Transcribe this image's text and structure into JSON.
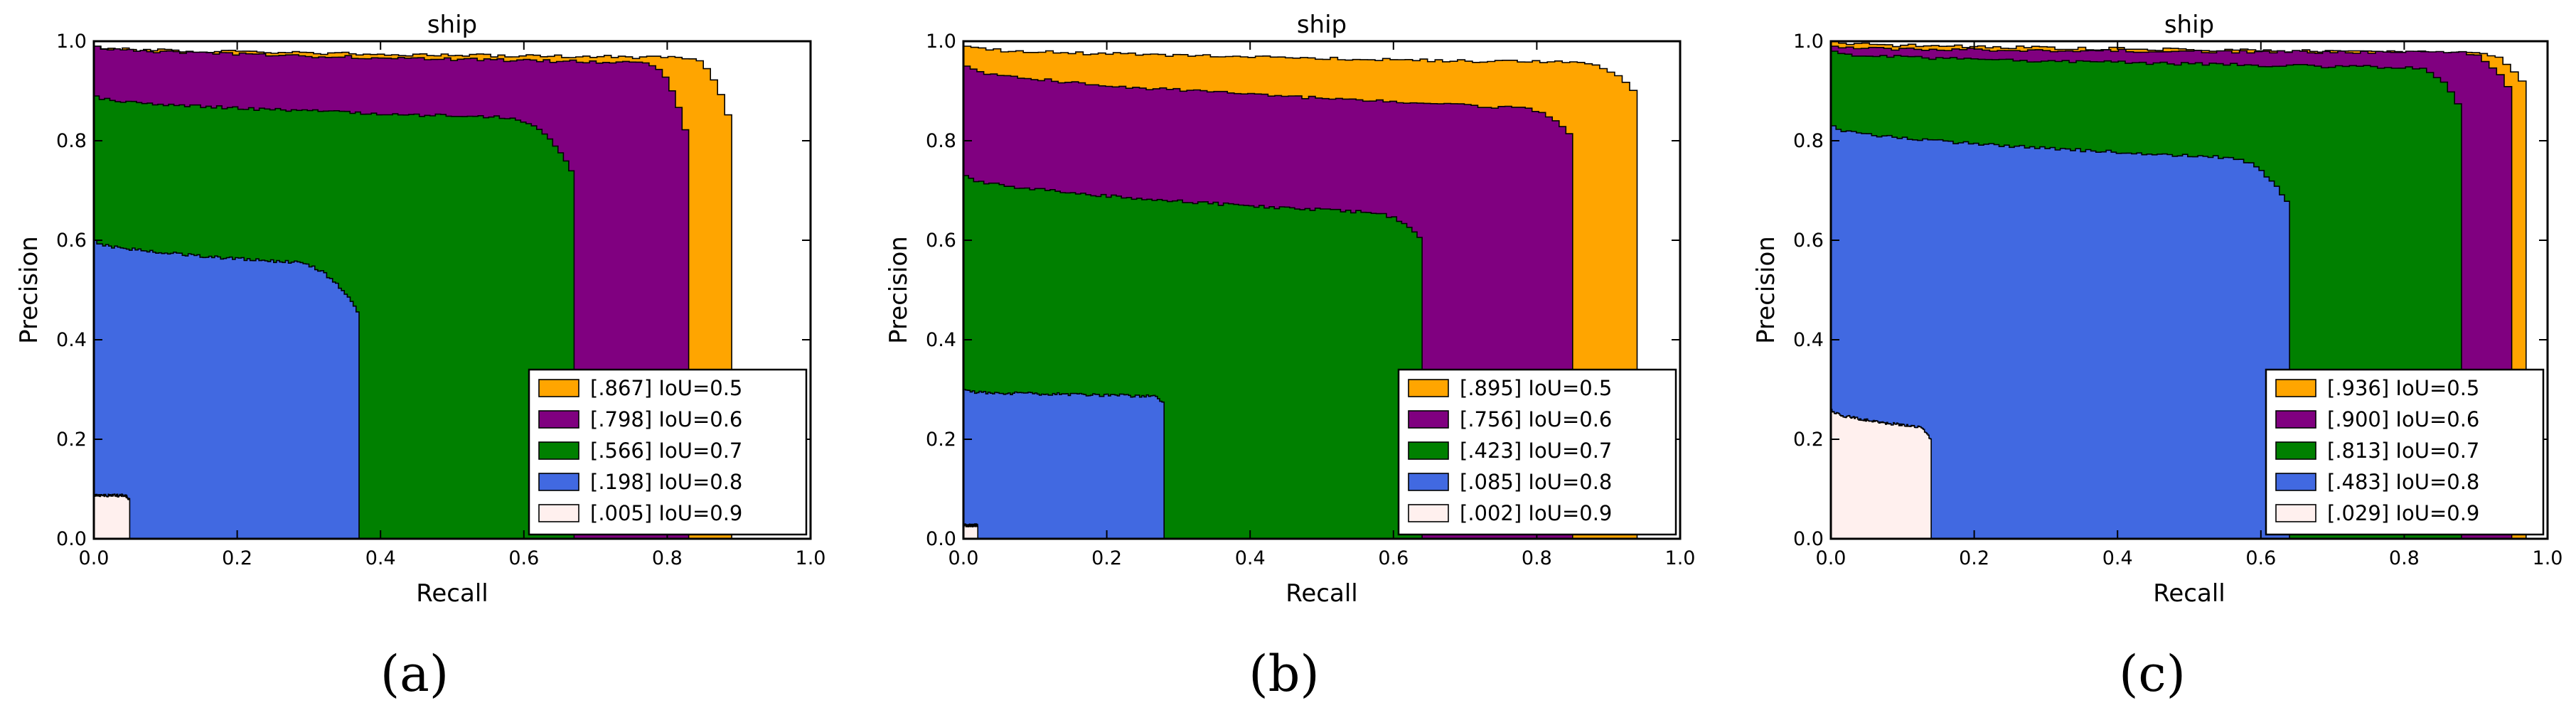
{
  "figure": {
    "captions": [
      "(a)",
      "(b)",
      "(c)"
    ]
  },
  "chart_data": [
    {
      "type": "area",
      "title": "ship",
      "xlabel": "Recall",
      "ylabel": "Precision",
      "xlim": [
        0,
        1
      ],
      "ylim": [
        0,
        1
      ],
      "xticks": [
        "0.0",
        "0.2",
        "0.4",
        "0.6",
        "0.8",
        "1.0"
      ],
      "yticks": [
        "0.0",
        "0.2",
        "0.4",
        "0.6",
        "0.8",
        "1.0"
      ],
      "legend_position": "lower-right",
      "series": [
        {
          "name": "[.867] IoU=0.5",
          "color": "#FFA500",
          "p0": 0.99,
          "pm": 0.97,
          "r1": 0.89,
          "rk": 0.82,
          "pk": 0.8,
          "pw": 2.5
        },
        {
          "name": "[.798] IoU=0.6",
          "color": "#800080",
          "p0": 0.99,
          "pm": 0.96,
          "r1": 0.83,
          "rk": 0.76,
          "pk": 0.77,
          "pw": 2.5
        },
        {
          "name": "[.566] IoU=0.7",
          "color": "#008000",
          "p0": 0.89,
          "pm": 0.85,
          "r1": 0.67,
          "rk": 0.56,
          "pk": 0.72,
          "pw": 2.5
        },
        {
          "name": "[.198] IoU=0.8",
          "color": "#4169E1",
          "p0": 0.6,
          "pm": 0.56,
          "r1": 0.37,
          "rk": 0.26,
          "pk": 0.45,
          "pw": 2.5
        },
        {
          "name": "[.005] IoU=0.9",
          "color": "#FFF0EE",
          "p0": 0.09,
          "pm": 0.09,
          "r1": 0.05,
          "rk": 0.04,
          "pk": 0.08,
          "pw": 2.5
        }
      ]
    },
    {
      "type": "area",
      "title": "ship",
      "xlabel": "Recall",
      "ylabel": "Precision",
      "xlim": [
        0,
        1
      ],
      "ylim": [
        0,
        1
      ],
      "xticks": [
        "0.0",
        "0.2",
        "0.4",
        "0.6",
        "0.8",
        "1.0"
      ],
      "yticks": [
        "0.0",
        "0.2",
        "0.4",
        "0.6",
        "0.8",
        "1.0"
      ],
      "legend_position": "lower-right",
      "series": [
        {
          "name": "[.895] IoU=0.5",
          "color": "#FFA500",
          "p0": 0.99,
          "pm": 0.96,
          "r1": 0.94,
          "rk": 0.85,
          "pk": 0.88,
          "pw": 2.5
        },
        {
          "name": "[.756] IoU=0.6",
          "color": "#800080",
          "p0": 0.95,
          "pm": 0.87,
          "r1": 0.85,
          "rk": 0.76,
          "pk": 0.8,
          "pw": 2.5
        },
        {
          "name": "[.423] IoU=0.7",
          "color": "#008000",
          "p0": 0.73,
          "pm": 0.66,
          "r1": 0.64,
          "rk": 0.55,
          "pk": 0.6,
          "pw": 2.5
        },
        {
          "name": "[.085] IoU=0.8",
          "color": "#4169E1",
          "p0": 0.3,
          "pm": 0.29,
          "r1": 0.28,
          "rk": 0.26,
          "pk": 0.27,
          "pw": 2.5
        },
        {
          "name": "[.002] IoU=0.9",
          "color": "#FFF0EE",
          "p0": 0.03,
          "pm": 0.03,
          "r1": 0.02,
          "rk": 0.015,
          "pk": 0.03,
          "pw": 2.5
        }
      ]
    },
    {
      "type": "area",
      "title": "ship",
      "xlabel": "Recall",
      "ylabel": "Precision",
      "xlim": [
        0,
        1
      ],
      "ylim": [
        0,
        1
      ],
      "xticks": [
        "0.0",
        "0.2",
        "0.4",
        "0.6",
        "0.8",
        "1.0"
      ],
      "yticks": [
        "0.0",
        "0.2",
        "0.4",
        "0.6",
        "0.8",
        "1.0"
      ],
      "legend_position": "lower-right",
      "series": [
        {
          "name": "[.936] IoU=0.5",
          "color": "#FFA500",
          "p0": 1.0,
          "pm": 0.98,
          "r1": 0.97,
          "rk": 0.89,
          "pk": 0.9,
          "pw": 2.5
        },
        {
          "name": "[.900] IoU=0.6",
          "color": "#800080",
          "p0": 0.99,
          "pm": 0.98,
          "r1": 0.95,
          "rk": 0.87,
          "pk": 0.88,
          "pw": 2.5
        },
        {
          "name": "[.813] IoU=0.7",
          "color": "#008000",
          "p0": 0.98,
          "pm": 0.95,
          "r1": 0.88,
          "rk": 0.8,
          "pk": 0.85,
          "pw": 2.5
        },
        {
          "name": "[.483] IoU=0.8",
          "color": "#4169E1",
          "p0": 0.83,
          "pm": 0.77,
          "r1": 0.64,
          "rk": 0.54,
          "pk": 0.66,
          "pw": 2.5
        },
        {
          "name": "[.029] IoU=0.9",
          "color": "#FFF0EE",
          "p0": 0.26,
          "pm": 0.23,
          "r1": 0.14,
          "rk": 0.11,
          "pk": 0.2,
          "pw": 2.5
        }
      ]
    }
  ]
}
